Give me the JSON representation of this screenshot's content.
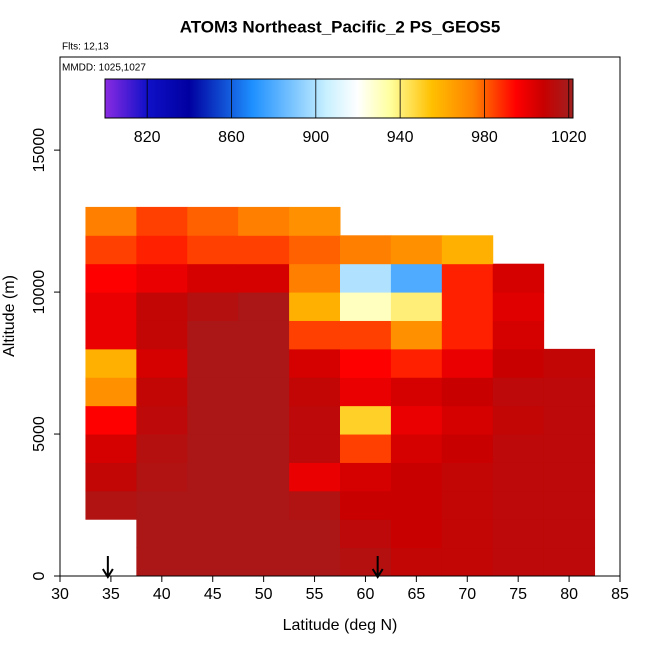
{
  "chart_data": {
    "type": "heatmap",
    "title": "ATOM3 Northeast_Pacific_2 PS_GEOS5",
    "annotations": [
      "Flts: 12,13",
      "MMDD: 1025,1027"
    ],
    "x_label": "Latitude (deg N)",
    "y_label": "Altitude (m)",
    "xlim": [
      30,
      85
    ],
    "ylim": [
      0,
      18280
    ],
    "xticks": [
      30,
      35,
      40,
      45,
      50,
      55,
      60,
      65,
      70,
      75,
      80,
      85
    ],
    "yticks": [
      0,
      5000,
      10000,
      15000
    ],
    "x": [
      35,
      40,
      45,
      50,
      55,
      60,
      65,
      70,
      75,
      80
    ],
    "y": [
      500,
      1500,
      2500,
      3500,
      4500,
      5500,
      6500,
      7500,
      8500,
      9500,
      10500,
      11500,
      12500
    ],
    "z": [
      [
        null,
        1018,
        1018,
        1018,
        1018,
        1015,
        1010,
        1010,
        1012,
        1012
      ],
      [
        null,
        1018,
        1018,
        1018,
        1018,
        1012,
        1008,
        1010,
        1012,
        1012
      ],
      [
        1016,
        1018,
        1018,
        1018,
        1016,
        1008,
        1008,
        1010,
        1012,
        1012
      ],
      [
        1010,
        1016,
        1018,
        1018,
        1000,
        1005,
        1008,
        1010,
        1012,
        1012
      ],
      [
        1005,
        1015,
        1018,
        1018,
        1012,
        985,
        1005,
        1008,
        1012,
        1012
      ],
      [
        995,
        1012,
        1018,
        1018,
        1012,
        950,
        1000,
        1005,
        1010,
        1012
      ],
      [
        970,
        1010,
        1018,
        1018,
        1010,
        1000,
        1005,
        1008,
        1012,
        1012
      ],
      [
        960,
        1005,
        1018,
        1018,
        1005,
        995,
        990,
        1000,
        1008,
        1010
      ],
      [
        1000,
        1010,
        1018,
        1018,
        985,
        985,
        970,
        990,
        1005,
        null
      ],
      [
        1000,
        1010,
        1015,
        1018,
        960,
        930,
        940,
        990,
        1002,
        null
      ],
      [
        995,
        1000,
        1005,
        1005,
        975,
        900,
        880,
        990,
        1005,
        null
      ],
      [
        985,
        990,
        985,
        985,
        980,
        975,
        970,
        960,
        null,
        null
      ],
      [
        975,
        985,
        980,
        975,
        970,
        null,
        null,
        null,
        null,
        null
      ]
    ],
    "zlim": [
      800,
      1022
    ],
    "zticks": [
      820,
      860,
      900,
      940,
      980,
      1020
    ],
    "colorscale": [
      {
        "value": 800,
        "color": "#8a2be2"
      },
      {
        "value": 820,
        "color": "#1010c8"
      },
      {
        "value": 840,
        "color": "#0000a0"
      },
      {
        "value": 870,
        "color": "#1e90ff"
      },
      {
        "value": 905,
        "color": "#c8f0ff"
      },
      {
        "value": 920,
        "color": "#ffffff"
      },
      {
        "value": 935,
        "color": "#ffffa0"
      },
      {
        "value": 955,
        "color": "#ffc000"
      },
      {
        "value": 975,
        "color": "#ff8000"
      },
      {
        "value": 995,
        "color": "#ff0000"
      },
      {
        "value": 1008,
        "color": "#c80000"
      },
      {
        "value": 1022,
        "color": "#a02020"
      }
    ],
    "arrows": [
      34.7,
      61.2
    ]
  }
}
